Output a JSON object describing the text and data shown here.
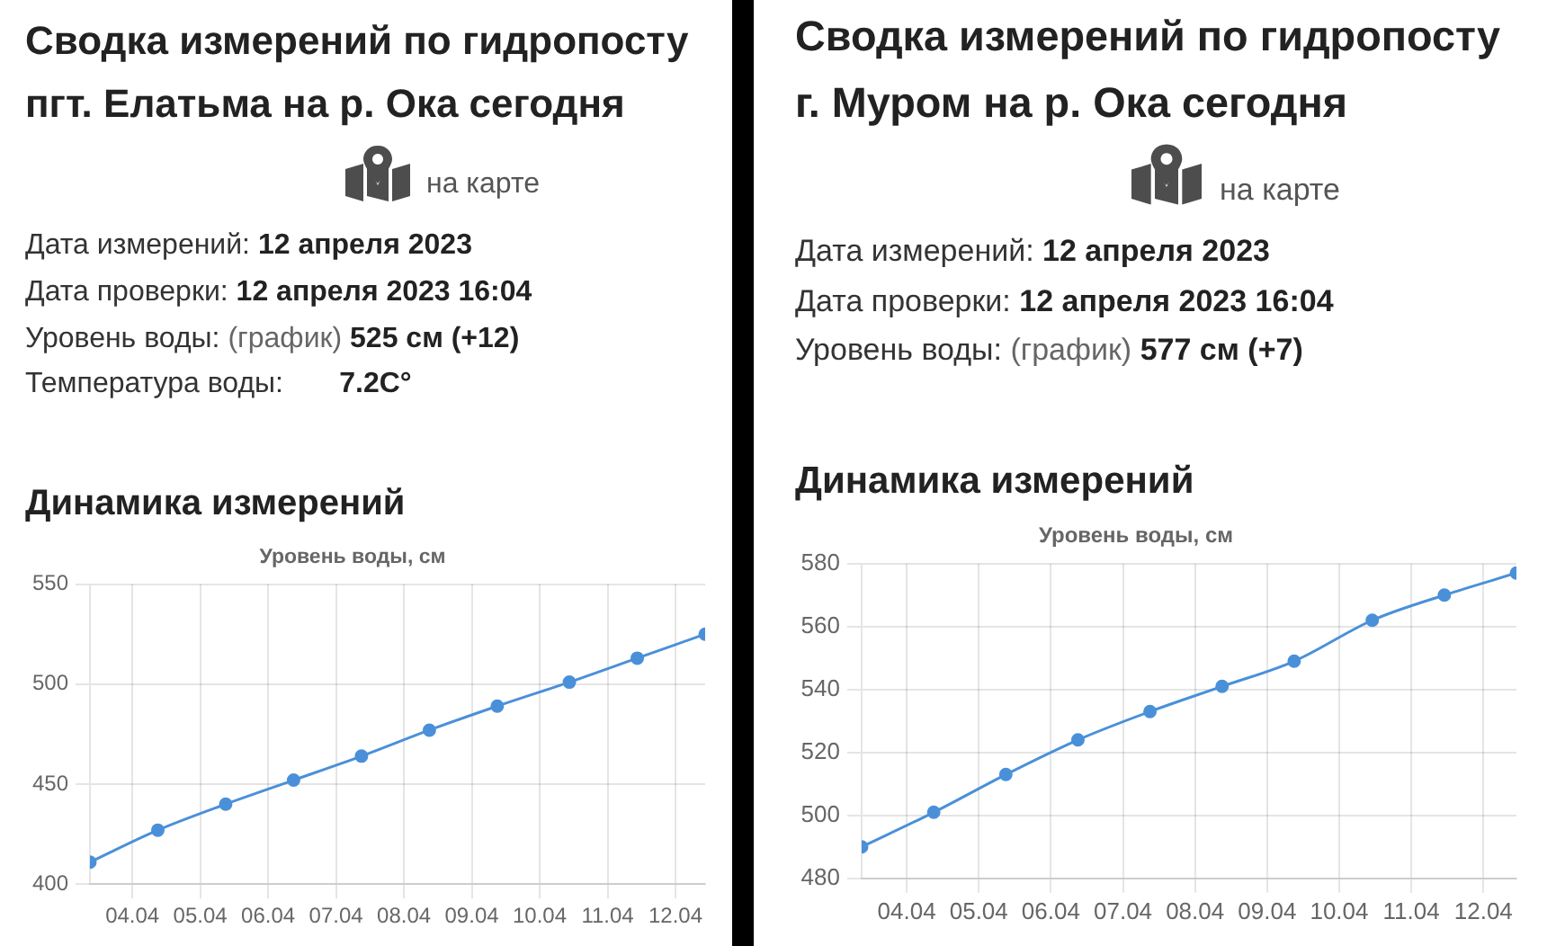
{
  "chart_data": [
    {
      "type": "line",
      "title": "Уровень воды, см",
      "subtitle": "Динамика измерений",
      "annotations": [
        "Сводка измерений по гидропосту пгт. Елатьма на р. Ока сегодня",
        "на карте",
        "Дата измерений: 12 апреля 2023",
        "Дата проверки: 12 апреля 2023 16:04",
        "Уровень воды: (график) 525 см (+12)",
        "Температура воды:       7.2C°"
      ],
      "x": [
        "2023-04-03T09:00",
        "2023-04-04T09:00",
        "2023-04-05T09:00",
        "2023-04-06T09:00",
        "2023-04-07T09:00",
        "2023-04-08T09:00",
        "2023-04-09T09:00",
        "2023-04-10T10:30",
        "2023-04-11T10:30",
        "2023-04-12T10:30"
      ],
      "values": [
        411,
        427,
        440,
        452,
        464,
        477,
        489,
        501,
        513,
        525
      ],
      "color": "#4a90d9",
      "marker": "circle",
      "line_style": "solid",
      "grid": true,
      "xlim": [
        "2023-04-03T09:00",
        "2023-04-12T10:30"
      ],
      "xticks": [
        {
          "value": "2023-04-04",
          "label": "04.04"
        },
        {
          "value": "2023-04-05",
          "label": "05.04"
        },
        {
          "value": "2023-04-06",
          "label": "06.04"
        },
        {
          "value": "2023-04-07",
          "label": "07.04"
        },
        {
          "value": "2023-04-08",
          "label": "08.04"
        },
        {
          "value": "2023-04-09",
          "label": "09.04"
        },
        {
          "value": "2023-04-10",
          "label": "10.04"
        },
        {
          "value": "2023-04-11",
          "label": "11.04"
        },
        {
          "value": "2023-04-12",
          "label": "12.04"
        }
      ],
      "ylim": [
        400,
        550
      ],
      "yticks": [
        400,
        450,
        500,
        550
      ]
    },
    {
      "type": "line",
      "title": "Уровень воды, см",
      "subtitle": "Динамика измерений",
      "annotations": [
        "Сводка измерений по гидропосту г. Муром на р. Ока сегодня",
        "на карте",
        "Дата измерений: 12 апреля 2023",
        "Дата проверки: 12 апреля 2023 16:04",
        "Уровень воды: (график) 577 см (+7)"
      ],
      "x": [
        "2023-04-03T09:00",
        "2023-04-04T09:00",
        "2023-04-05T09:00",
        "2023-04-06T09:00",
        "2023-04-07T09:00",
        "2023-04-08T09:00",
        "2023-04-09T09:00",
        "2023-04-10T11:00",
        "2023-04-11T11:00",
        "2023-04-12T11:00"
      ],
      "values": [
        490,
        501,
        513,
        524,
        533,
        541,
        549,
        562,
        570,
        577
      ],
      "color": "#4a90d9",
      "marker": "circle",
      "line_style": "solid",
      "grid": true,
      "xlim": [
        "2023-04-03T09:00",
        "2023-04-12T11:00"
      ],
      "xticks": [
        {
          "value": "2023-04-04",
          "label": "04.04"
        },
        {
          "value": "2023-04-05",
          "label": "05.04"
        },
        {
          "value": "2023-04-06",
          "label": "06.04"
        },
        {
          "value": "2023-04-07",
          "label": "07.04"
        },
        {
          "value": "2023-04-08",
          "label": "08.04"
        },
        {
          "value": "2023-04-09",
          "label": "09.04"
        },
        {
          "value": "2023-04-10",
          "label": "10.04"
        },
        {
          "value": "2023-04-11",
          "label": "11.04"
        },
        {
          "value": "2023-04-12",
          "label": "12.04"
        }
      ],
      "ylim": [
        480,
        580
      ],
      "yticks": [
        480,
        500,
        520,
        540,
        560,
        580
      ]
    }
  ]
}
